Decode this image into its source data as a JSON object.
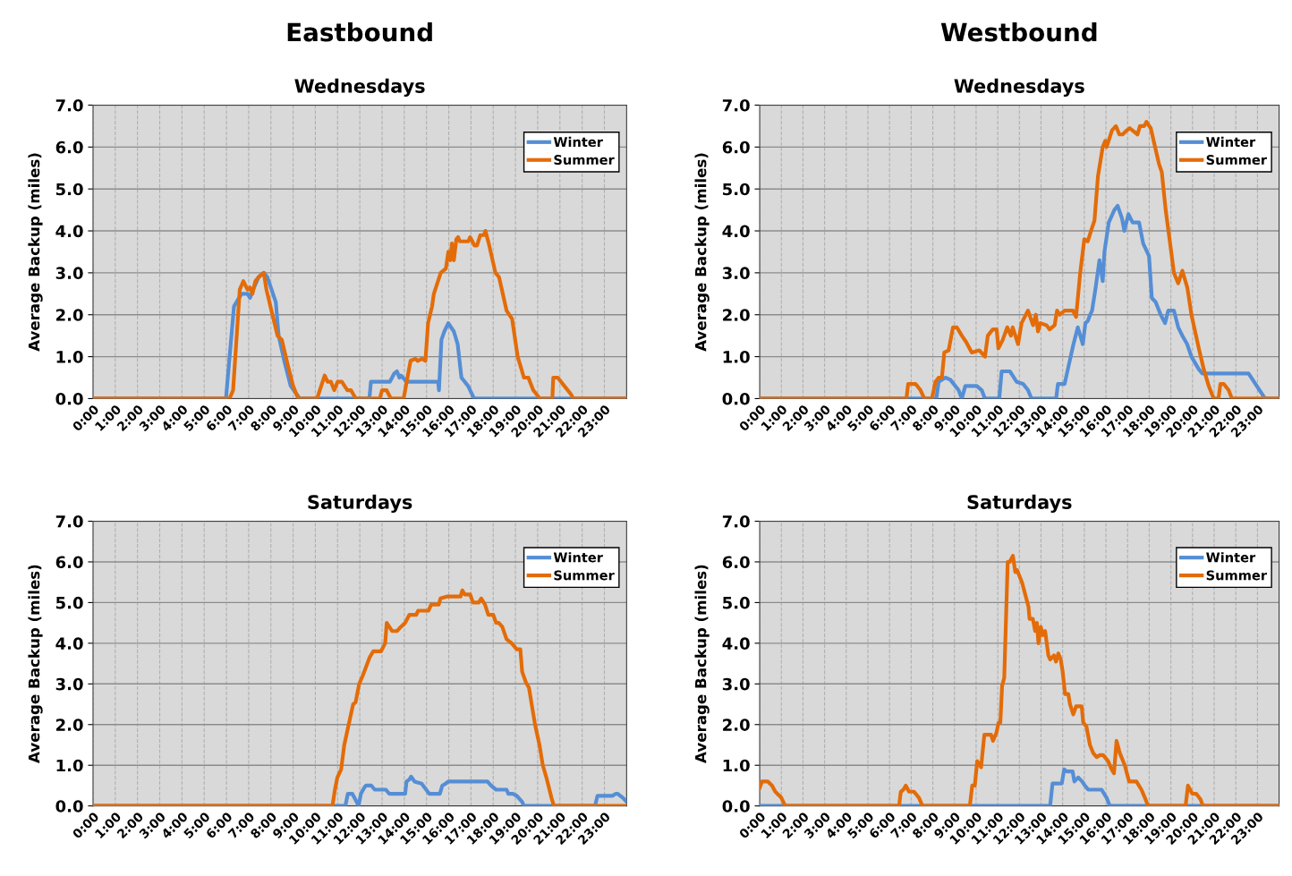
{
  "chart_data": [
    {
      "type": "line",
      "title": "Eastbound",
      "subtitle": "Wednesdays",
      "ylabel": "Average Backup (miles)",
      "xlim": [
        0,
        24
      ],
      "xticks": [
        {
          "value": 0,
          "label": "0:00"
        },
        {
          "value": 1,
          "label": "1:00"
        },
        {
          "value": 2,
          "label": "2:00"
        },
        {
          "value": 3,
          "label": "3:00"
        },
        {
          "value": 4,
          "label": "4:00"
        },
        {
          "value": 5,
          "label": "5:00"
        },
        {
          "value": 6,
          "label": "6:00"
        },
        {
          "value": 7,
          "label": "7:00"
        },
        {
          "value": 8,
          "label": "8:00"
        },
        {
          "value": 9,
          "label": "9:00"
        },
        {
          "value": 10,
          "label": "10:00"
        },
        {
          "value": 11,
          "label": "11:00"
        },
        {
          "value": 12,
          "label": "12:00"
        },
        {
          "value": 13,
          "label": "13:00"
        },
        {
          "value": 14,
          "label": "14:00"
        },
        {
          "value": 15,
          "label": "15:00"
        },
        {
          "value": 16,
          "label": "16:00"
        },
        {
          "value": 17,
          "label": "17:00"
        },
        {
          "value": 18,
          "label": "18:00"
        },
        {
          "value": 19,
          "label": "19:00"
        },
        {
          "value": 20,
          "label": "20:00"
        },
        {
          "value": 21,
          "label": "21:00"
        },
        {
          "value": 22,
          "label": "22:00"
        },
        {
          "value": 23,
          "label": "23:00"
        }
      ],
      "ylim": [
        0,
        7
      ],
      "yticks": [
        {
          "value": 0,
          "label": "0.0"
        },
        {
          "value": 1,
          "label": "1.0"
        },
        {
          "value": 2,
          "label": "2.0"
        },
        {
          "value": 3,
          "label": "3.0"
        },
        {
          "value": 4,
          "label": "4.0"
        },
        {
          "value": 5,
          "label": "5.0"
        },
        {
          "value": 6,
          "label": "6.0"
        },
        {
          "value": 7,
          "label": "7.0"
        }
      ],
      "grid": true,
      "legend": "top right",
      "series": [
        {
          "name": "Winter",
          "color": "#558ed5",
          "x": [
            0,
            5.98,
            6.34,
            6.68,
            6.95,
            7.06,
            7.2,
            7.45,
            7.68,
            7.84,
            8.22,
            8.35,
            8.6,
            8.89,
            9.3,
            12.43,
            12.5,
            13.35,
            13.55,
            13.67,
            13.78,
            13.85,
            14.1,
            15.52,
            15.56,
            15.67,
            15.8,
            15.98,
            16.23,
            16.4,
            16.57,
            16.87,
            17.14,
            24
          ],
          "values": [
            0,
            0,
            2.2,
            2.5,
            2.5,
            2.4,
            2.6,
            2.9,
            3.0,
            2.9,
            2.3,
            1.5,
            0.9,
            0.3,
            0,
            0,
            0.4,
            0.4,
            0.6,
            0.65,
            0.5,
            0.55,
            0.4,
            0.4,
            0.2,
            1.4,
            1.6,
            1.8,
            1.6,
            1.3,
            0.5,
            0.3,
            0,
            0
          ]
        },
        {
          "name": "Summer",
          "color": "#e36c09",
          "x": [
            0,
            6.14,
            6.3,
            6.6,
            6.76,
            6.95,
            7.06,
            7.17,
            7.3,
            7.45,
            7.68,
            7.8,
            8.07,
            8.3,
            8.49,
            8.76,
            9.0,
            9.23,
            10.08,
            10.2,
            10.42,
            10.55,
            10.7,
            10.85,
            11.0,
            11.19,
            11.44,
            11.6,
            11.82,
            12.9,
            13.0,
            13.2,
            13.4,
            13.97,
            14.28,
            14.5,
            14.6,
            14.8,
            14.95,
            15.07,
            15.25,
            15.33,
            15.64,
            15.87,
            15.98,
            16.07,
            16.14,
            16.23,
            16.34,
            16.42,
            16.5,
            16.88,
            16.96,
            17.16,
            17.27,
            17.42,
            17.58,
            17.65,
            17.8,
            18.1,
            18.26,
            18.6,
            18.85,
            19.1,
            19.27,
            19.38,
            19.58,
            19.8,
            20.1,
            20.66,
            20.7,
            20.9,
            21.2,
            21.5,
            21.6,
            24
          ],
          "values": [
            0,
            0,
            0.2,
            2.6,
            2.8,
            2.6,
            2.65,
            2.5,
            2.8,
            2.9,
            3.0,
            2.6,
            2.0,
            1.5,
            1.4,
            0.8,
            0.3,
            0,
            0,
            0.2,
            0.55,
            0.4,
            0.4,
            0.2,
            0.4,
            0.4,
            0.2,
            0.2,
            0,
            0,
            0.2,
            0.2,
            0,
            0,
            0.9,
            0.95,
            0.9,
            0.95,
            0.9,
            1.8,
            2.2,
            2.5,
            3.0,
            3.1,
            3.5,
            3.3,
            3.7,
            3.3,
            3.8,
            3.85,
            3.75,
            3.75,
            3.85,
            3.65,
            3.65,
            3.9,
            3.9,
            4.0,
            3.7,
            3.0,
            2.9,
            2.1,
            1.9,
            1.0,
            0.7,
            0.5,
            0.5,
            0.2,
            0,
            0,
            0.5,
            0.5,
            0.3,
            0.1,
            0,
            0
          ]
        }
      ]
    },
    {
      "type": "line",
      "title": "Westbound",
      "subtitle": "Wednesdays",
      "ylabel": "Average Backup (miles)",
      "xlim": [
        0,
        24
      ],
      "xticks": [
        {
          "value": 0,
          "label": "0:00"
        },
        {
          "value": 1,
          "label": "1:00"
        },
        {
          "value": 2,
          "label": "2:00"
        },
        {
          "value": 3,
          "label": "3:00"
        },
        {
          "value": 4,
          "label": "4:00"
        },
        {
          "value": 5,
          "label": "5:00"
        },
        {
          "value": 6,
          "label": "6:00"
        },
        {
          "value": 7,
          "label": "7:00"
        },
        {
          "value": 8,
          "label": "8:00"
        },
        {
          "value": 9,
          "label": "9:00"
        },
        {
          "value": 10,
          "label": "10:00"
        },
        {
          "value": 11,
          "label": "11:00"
        },
        {
          "value": 12,
          "label": "12:00"
        },
        {
          "value": 13,
          "label": "13:00"
        },
        {
          "value": 14,
          "label": "14:00"
        },
        {
          "value": 15,
          "label": "15:00"
        },
        {
          "value": 16,
          "label": "16:00"
        },
        {
          "value": 17,
          "label": "17:00"
        },
        {
          "value": 18,
          "label": "18:00"
        },
        {
          "value": 19,
          "label": "19:00"
        },
        {
          "value": 20,
          "label": "20:00"
        },
        {
          "value": 21,
          "label": "21:00"
        },
        {
          "value": 22,
          "label": "22:00"
        },
        {
          "value": 23,
          "label": "23:00"
        }
      ],
      "ylim": [
        0,
        7
      ],
      "yticks": [
        {
          "value": 0,
          "label": "0.0"
        },
        {
          "value": 1,
          "label": "1.0"
        },
        {
          "value": 2,
          "label": "2.0"
        },
        {
          "value": 3,
          "label": "3.0"
        },
        {
          "value": 4,
          "label": "4.0"
        },
        {
          "value": 5,
          "label": "5.0"
        },
        {
          "value": 6,
          "label": "6.0"
        },
        {
          "value": 7,
          "label": "7.0"
        }
      ],
      "grid": true,
      "legend": "top right",
      "series": [
        {
          "name": "Winter",
          "color": "#558ed5",
          "x": [
            0,
            8.16,
            8.27,
            8.58,
            8.81,
            9.19,
            9.34,
            9.5,
            10.03,
            10.26,
            10.41,
            11.07,
            11.18,
            11.56,
            11.87,
            12.17,
            12.4,
            12.56,
            13.7,
            13.78,
            14.09,
            14.24,
            14.5,
            14.7,
            14.93,
            15.05,
            15.16,
            15.27,
            15.36,
            15.51,
            15.7,
            15.85,
            15.93,
            16.13,
            16.39,
            16.54,
            16.74,
            16.85,
            17.04,
            17.23,
            17.53,
            17.72,
            17.99,
            18.12,
            18.3,
            18.53,
            18.73,
            18.88,
            19.14,
            19.34,
            19.53,
            19.75,
            19.95,
            20.29,
            20.45,
            22.59,
            22.97,
            23.35,
            24
          ],
          "values": [
            0,
            0,
            0.4,
            0.5,
            0.45,
            0.2,
            0,
            0.3,
            0.3,
            0.2,
            0,
            0,
            0.65,
            0.65,
            0.4,
            0.35,
            0.2,
            0,
            0,
            0.35,
            0.35,
            0.7,
            1.3,
            1.7,
            1.3,
            1.8,
            1.85,
            2.0,
            2.1,
            2.6,
            3.3,
            2.8,
            3.5,
            4.2,
            4.5,
            4.6,
            4.3,
            4.0,
            4.4,
            4.2,
            4.2,
            3.7,
            3.4,
            2.4,
            2.3,
            2.0,
            1.8,
            2.1,
            2.1,
            1.7,
            1.5,
            1.3,
            1.0,
            0.7,
            0.6,
            0.6,
            0.3,
            0,
            0
          ]
        },
        {
          "name": "Summer",
          "color": "#e36c09",
          "x": [
            0,
            6.78,
            6.86,
            7.2,
            7.43,
            7.61,
            7.96,
            8.12,
            8.27,
            8.42,
            8.53,
            8.73,
            8.93,
            9.11,
            9.34,
            9.54,
            9.8,
            10.15,
            10.41,
            10.54,
            10.77,
            10.95,
            11.03,
            11.23,
            11.44,
            11.61,
            11.69,
            11.94,
            12.1,
            12.4,
            12.63,
            12.76,
            12.86,
            12.97,
            13.25,
            13.4,
            13.63,
            13.74,
            13.86,
            14.09,
            14.47,
            14.62,
            14.81,
            15.0,
            15.16,
            15.31,
            15.47,
            15.63,
            15.85,
            15.97,
            16.03,
            16.28,
            16.46,
            16.62,
            16.77,
            16.97,
            17.1,
            17.46,
            17.57,
            17.77,
            17.87,
            18.07,
            18.27,
            18.45,
            18.58,
            18.76,
            18.99,
            19.14,
            19.34,
            19.53,
            19.76,
            19.95,
            20.29,
            20.52,
            20.75,
            20.98,
            21.2,
            21.29,
            21.44,
            21.67,
            21.82,
            24
          ],
          "values": [
            0,
            0,
            0.35,
            0.35,
            0.2,
            0,
            0,
            0.4,
            0.5,
            0.5,
            1.1,
            1.15,
            1.7,
            1.7,
            1.5,
            1.35,
            1.1,
            1.15,
            1.0,
            1.5,
            1.65,
            1.65,
            1.2,
            1.4,
            1.7,
            1.5,
            1.7,
            1.3,
            1.8,
            2.1,
            1.75,
            2.0,
            1.6,
            1.8,
            1.75,
            1.65,
            1.75,
            2.1,
            2.0,
            2.1,
            2.1,
            1.95,
            3.0,
            3.8,
            3.75,
            4.0,
            4.25,
            5.3,
            6.0,
            6.15,
            6.0,
            6.4,
            6.5,
            6.3,
            6.3,
            6.4,
            6.45,
            6.3,
            6.5,
            6.5,
            6.6,
            6.45,
            6.0,
            5.6,
            5.4,
            4.5,
            3.6,
            3.0,
            2.75,
            3.05,
            2.65,
            2.0,
            1.2,
            0.7,
            0.3,
            0,
            0,
            0.35,
            0.35,
            0.2,
            0,
            0
          ]
        }
      ]
    },
    {
      "type": "line",
      "title": "Saturdays",
      "ylabel": "Average Backup (miles)",
      "xlim": [
        0,
        24
      ],
      "xticks": [
        {
          "value": 0,
          "label": "0:00"
        },
        {
          "value": 1,
          "label": "1:00"
        },
        {
          "value": 2,
          "label": "2:00"
        },
        {
          "value": 3,
          "label": "3:00"
        },
        {
          "value": 4,
          "label": "4:00"
        },
        {
          "value": 5,
          "label": "5:00"
        },
        {
          "value": 6,
          "label": "6:00"
        },
        {
          "value": 7,
          "label": "7:00"
        },
        {
          "value": 8,
          "label": "8:00"
        },
        {
          "value": 9,
          "label": "9:00"
        },
        {
          "value": 10,
          "label": "10:00"
        },
        {
          "value": 11,
          "label": "11:00"
        },
        {
          "value": 12,
          "label": "12:00"
        },
        {
          "value": 13,
          "label": "13:00"
        },
        {
          "value": 14,
          "label": "14:00"
        },
        {
          "value": 15,
          "label": "15:00"
        },
        {
          "value": 16,
          "label": "16:00"
        },
        {
          "value": 17,
          "label": "17:00"
        },
        {
          "value": 18,
          "label": "18:00"
        },
        {
          "value": 19,
          "label": "19:00"
        },
        {
          "value": 20,
          "label": "20:00"
        },
        {
          "value": 21,
          "label": "21:00"
        },
        {
          "value": 22,
          "label": "22:00"
        },
        {
          "value": 23,
          "label": "23:00"
        }
      ],
      "ylim": [
        0,
        7
      ],
      "yticks": [
        {
          "value": 0,
          "label": "0.0"
        },
        {
          "value": 1,
          "label": "1.0"
        },
        {
          "value": 2,
          "label": "2.0"
        },
        {
          "value": 3,
          "label": "3.0"
        },
        {
          "value": 4,
          "label": "4.0"
        },
        {
          "value": 5,
          "label": "5.0"
        },
        {
          "value": 6,
          "label": "6.0"
        },
        {
          "value": 7,
          "label": "7.0"
        }
      ],
      "grid": true,
      "legend": "top right",
      "series": [
        {
          "name": "Winter",
          "color": "#558ed5",
          "x": [
            0,
            11.35,
            11.46,
            11.66,
            11.86,
            11.94,
            12.05,
            12.2,
            12.28,
            12.52,
            12.67,
            13.17,
            13.32,
            14.04,
            14.1,
            14.23,
            14.31,
            14.46,
            14.78,
            15.12,
            15.6,
            15.71,
            15.87,
            15.98,
            17.74,
            17.9,
            18.13,
            18.6,
            18.68,
            18.88,
            19.06,
            19.3,
            19.38,
            22.58,
            22.69,
            23.36,
            23.52,
            23.6,
            23.83,
            24.0
          ],
          "values": [
            0,
            0,
            0.3,
            0.3,
            0.1,
            0,
            0.3,
            0.45,
            0.5,
            0.5,
            0.4,
            0.4,
            0.3,
            0.3,
            0.6,
            0.65,
            0.72,
            0.6,
            0.55,
            0.3,
            0.3,
            0.5,
            0.55,
            0.6,
            0.6,
            0.5,
            0.4,
            0.4,
            0.3,
            0.3,
            0.25,
            0.1,
            0,
            0,
            0.25,
            0.25,
            0.3,
            0.3,
            0.2,
            0.1
          ]
        },
        {
          "name": "Summer",
          "color": "#e36c09",
          "x": [
            0,
            10.77,
            10.88,
            10.99,
            11.16,
            11.3,
            11.5,
            11.7,
            11.81,
            11.97,
            12.13,
            12.44,
            12.6,
            12.95,
            13.14,
            13.21,
            13.45,
            13.68,
            13.84,
            14.04,
            14.23,
            14.54,
            14.62,
            15.09,
            15.21,
            15.55,
            15.63,
            15.94,
            16.53,
            16.61,
            16.72,
            16.96,
            17.09,
            17.35,
            17.46,
            17.63,
            17.78,
            18.0,
            18.13,
            18.25,
            18.41,
            18.6,
            18.83,
            19.06,
            19.22,
            19.3,
            19.46,
            19.61,
            19.88,
            20.08,
            20.23,
            20.39,
            20.62,
            20.73,
            24
          ],
          "values": [
            0,
            0,
            0.4,
            0.7,
            0.9,
            1.5,
            2.0,
            2.5,
            2.55,
            3.0,
            3.2,
            3.65,
            3.8,
            3.8,
            4.0,
            4.5,
            4.3,
            4.3,
            4.4,
            4.5,
            4.7,
            4.7,
            4.8,
            4.8,
            4.95,
            4.95,
            5.1,
            5.15,
            5.15,
            5.3,
            5.2,
            5.2,
            5.0,
            5.0,
            5.1,
            4.95,
            4.7,
            4.7,
            4.5,
            4.5,
            4.4,
            4.1,
            4.0,
            3.85,
            3.85,
            3.3,
            3.05,
            2.9,
            2.0,
            1.5,
            1.0,
            0.7,
            0.2,
            0,
            0
          ]
        }
      ]
    },
    {
      "type": "line",
      "title": "Saturdays",
      "ylabel": "Average Backup (miles)",
      "xlim": [
        0,
        24
      ],
      "xticks": [
        {
          "value": 0,
          "label": "0:00"
        },
        {
          "value": 1,
          "label": "1:00"
        },
        {
          "value": 2,
          "label": "2:00"
        },
        {
          "value": 3,
          "label": "3:00"
        },
        {
          "value": 4,
          "label": "4:00"
        },
        {
          "value": 5,
          "label": "5:00"
        },
        {
          "value": 6,
          "label": "6:00"
        },
        {
          "value": 7,
          "label": "7:00"
        },
        {
          "value": 8,
          "label": "8:00"
        },
        {
          "value": 9,
          "label": "9:00"
        },
        {
          "value": 10,
          "label": "10:00"
        },
        {
          "value": 11,
          "label": "11:00"
        },
        {
          "value": 12,
          "label": "12:00"
        },
        {
          "value": 13,
          "label": "13:00"
        },
        {
          "value": 14,
          "label": "14:00"
        },
        {
          "value": 15,
          "label": "15:00"
        },
        {
          "value": 16,
          "label": "16:00"
        },
        {
          "value": 17,
          "label": "17:00"
        },
        {
          "value": 18,
          "label": "18:00"
        },
        {
          "value": 19,
          "label": "19:00"
        },
        {
          "value": 20,
          "label": "20:00"
        },
        {
          "value": 21,
          "label": "21:00"
        },
        {
          "value": 22,
          "label": "22:00"
        },
        {
          "value": 23,
          "label": "23:00"
        }
      ],
      "ylim": [
        0,
        7
      ],
      "yticks": [
        {
          "value": 0,
          "label": "0.0"
        },
        {
          "value": 1,
          "label": "1.0"
        },
        {
          "value": 2,
          "label": "2.0"
        },
        {
          "value": 3,
          "label": "3.0"
        },
        {
          "value": 4,
          "label": "4.0"
        },
        {
          "value": 5,
          "label": "5.0"
        },
        {
          "value": 6,
          "label": "6.0"
        },
        {
          "value": 7,
          "label": "7.0"
        }
      ],
      "grid": true,
      "legend": "top right",
      "series": [
        {
          "name": "Winter",
          "color": "#558ed5",
          "x": [
            0,
            13.42,
            13.53,
            13.96,
            14.07,
            14.19,
            14.46,
            14.54,
            14.72,
            14.9,
            15.03,
            15.18,
            15.8,
            16.03,
            16.18,
            24
          ],
          "values": [
            0,
            0,
            0.55,
            0.55,
            0.9,
            0.85,
            0.85,
            0.6,
            0.7,
            0.6,
            0.5,
            0.4,
            0.4,
            0.2,
            0,
            0
          ]
        },
        {
          "name": "Summer",
          "color": "#e36c09",
          "x": [
            0,
            0.11,
            0.38,
            0.57,
            0.72,
            1.0,
            1.18,
            6.44,
            6.52,
            6.64,
            6.75,
            6.9,
            7.13,
            7.36,
            7.52,
            9.71,
            9.82,
            9.94,
            10.05,
            10.23,
            10.38,
            10.69,
            10.78,
            10.94,
            11.04,
            11.12,
            11.2,
            11.3,
            11.46,
            11.55,
            11.7,
            11.81,
            11.89,
            12.12,
            12.42,
            12.47,
            12.62,
            12.73,
            12.81,
            12.88,
            12.99,
            13.08,
            13.19,
            13.34,
            13.42,
            13.6,
            13.69,
            13.8,
            13.91,
            14.0,
            14.11,
            14.26,
            14.34,
            14.49,
            14.62,
            14.88,
            14.95,
            15.1,
            15.26,
            15.41,
            15.57,
            15.72,
            15.87,
            16.1,
            16.26,
            16.37,
            16.49,
            16.64,
            16.87,
            17.07,
            17.41,
            17.64,
            17.84,
            17.94,
            19.68,
            19.79,
            19.99,
            20.17,
            20.38,
            20.48,
            24
          ],
          "values": [
            0.45,
            0.6,
            0.6,
            0.5,
            0.35,
            0.2,
            0,
            0,
            0.35,
            0.4,
            0.5,
            0.35,
            0.35,
            0.2,
            0,
            0,
            0.5,
            0.5,
            1.1,
            0.95,
            1.75,
            1.75,
            1.6,
            1.8,
            2.05,
            2.05,
            2.95,
            3.15,
            6.0,
            6.0,
            6.15,
            5.75,
            5.8,
            5.5,
            4.9,
            4.6,
            4.6,
            4.3,
            4.5,
            4.0,
            4.4,
            4.2,
            4.3,
            3.7,
            3.6,
            3.7,
            3.55,
            3.75,
            3.6,
            3.3,
            2.75,
            2.75,
            2.5,
            2.25,
            2.45,
            2.45,
            2.05,
            1.95,
            1.5,
            1.3,
            1.2,
            1.25,
            1.25,
            1.1,
            0.9,
            0.8,
            1.6,
            1.3,
            1.0,
            0.6,
            0.6,
            0.4,
            0.15,
            0,
            0,
            0.5,
            0.3,
            0.3,
            0.15,
            0,
            0
          ]
        }
      ]
    }
  ]
}
